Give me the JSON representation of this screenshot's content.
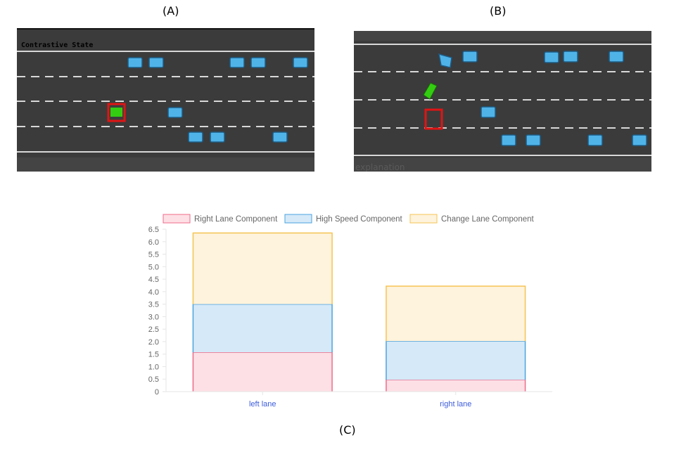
{
  "panels": {
    "a": {
      "label": "(A)",
      "overlay_text": "Contrastive State"
    },
    "b": {
      "label": "(B)",
      "overlay_text": "explanation"
    },
    "c": {
      "label": "(C)"
    }
  },
  "colors": {
    "road": "#3b3b3b",
    "car": "#4fb3e8",
    "car_border": "#1d5c85",
    "ego_car": "#33cc11",
    "ego_box": "#e01414",
    "lane_marking": "#d8d8d8"
  },
  "chart_data": {
    "type": "bar",
    "stacked": true,
    "categories": [
      "left lane",
      "right lane"
    ],
    "series": [
      {
        "name": "Right Lane Component",
        "values": [
          1.57,
          0.47
        ],
        "fill": "#fde0e6",
        "stroke": "#ef6b88"
      },
      {
        "name": "High Speed Component",
        "values": [
          1.93,
          1.55
        ],
        "fill": "#d5e9f8",
        "stroke": "#4aa3df"
      },
      {
        "name": "Change Lane Component",
        "values": [
          2.85,
          2.2
        ],
        "fill": "#fef3dc",
        "stroke": "#f5c453"
      }
    ],
    "yticks": [
      "0",
      "0.5",
      "1.0",
      "1.5",
      "2.0",
      "2.5",
      "3.0",
      "3.5",
      "4.0",
      "4.5",
      "5.0",
      "5.5",
      "6.0",
      "6.5"
    ],
    "ylim": [
      0,
      6.5
    ],
    "legend": "top",
    "grid": false
  }
}
